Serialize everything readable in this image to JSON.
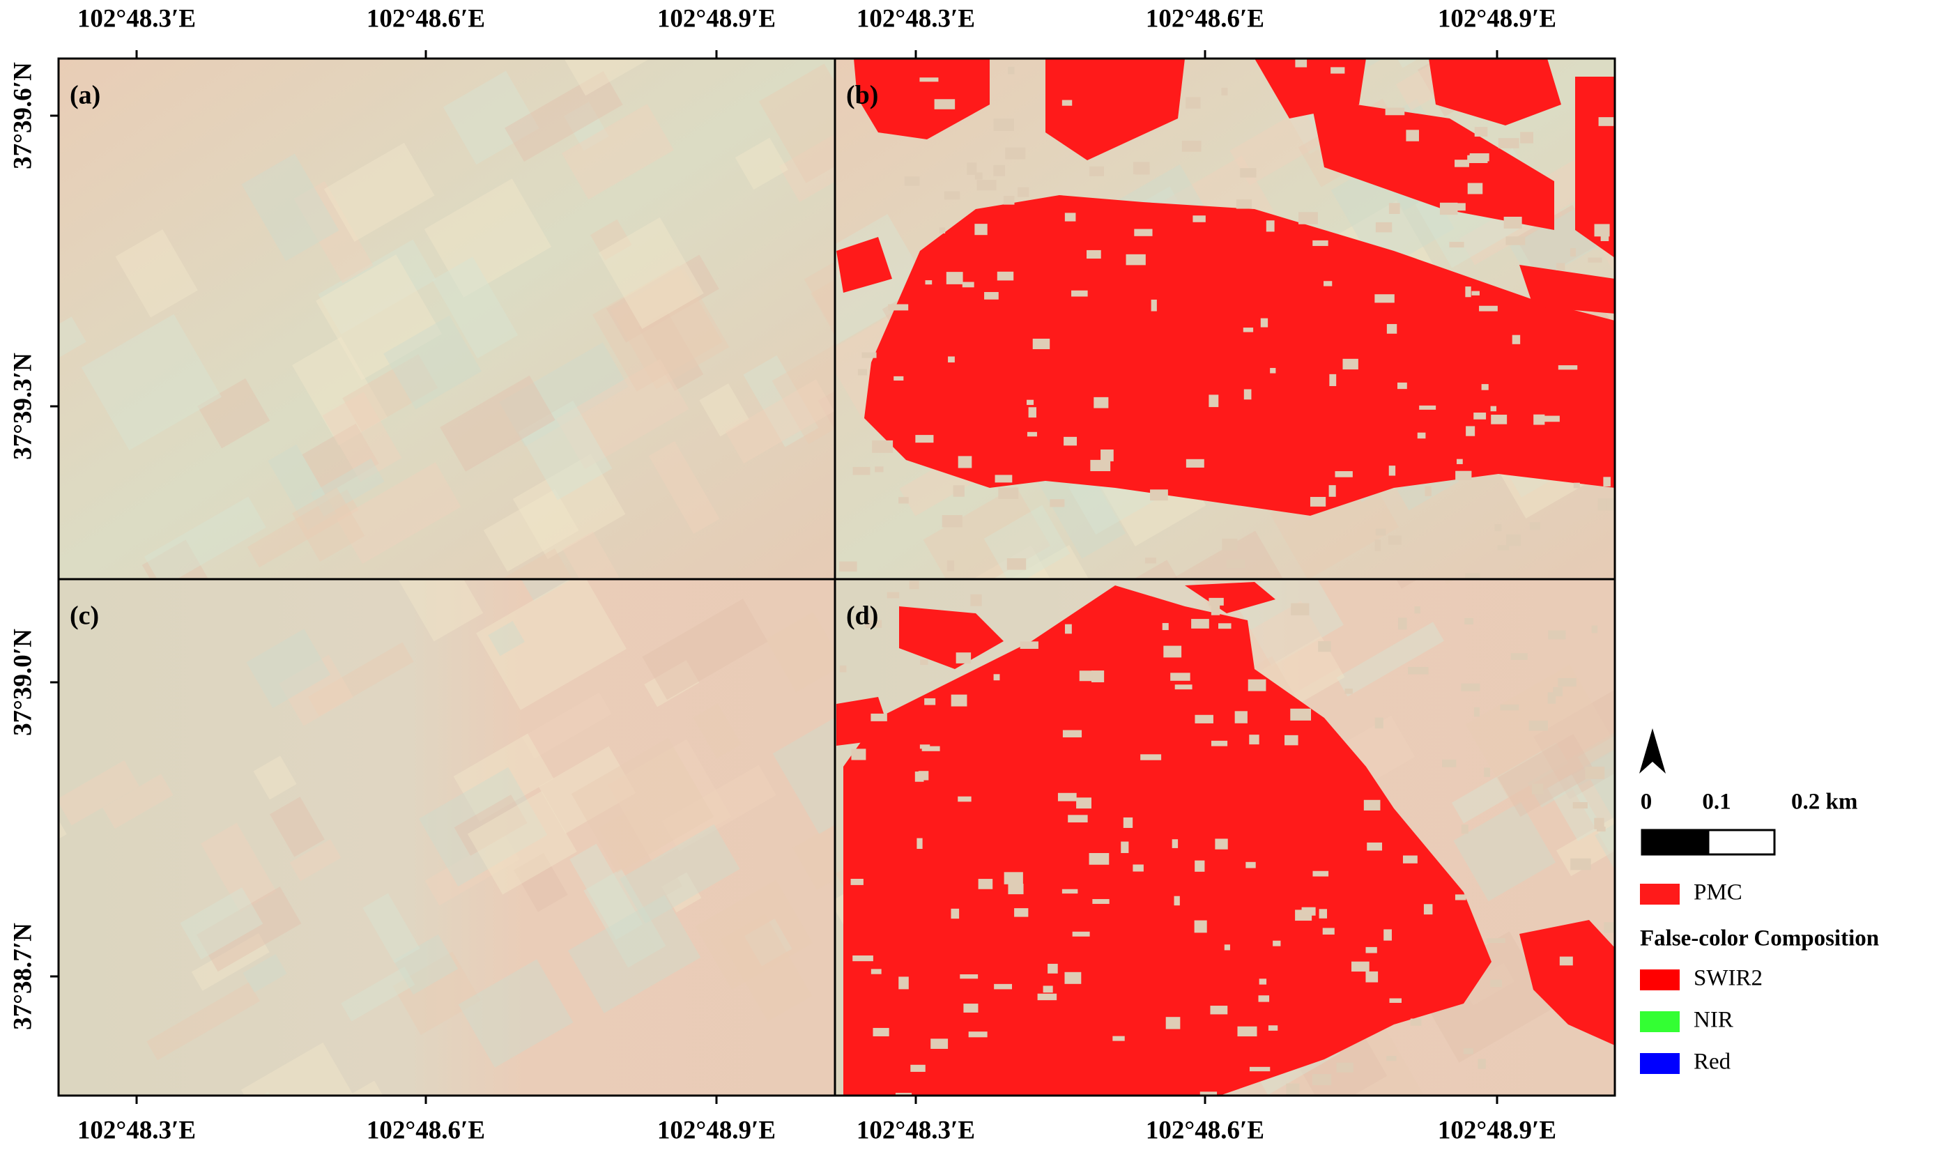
{
  "panels": [
    {
      "label": "(a)"
    },
    {
      "label": "(b)"
    },
    {
      "label": "(c)"
    },
    {
      "label": "(d)"
    }
  ],
  "axes": {
    "top": [
      [
        "102°48.3′E",
        "102°48.6′E",
        "102°48.9′E"
      ],
      [
        "102°48.3′E",
        "102°48.6′E",
        "102°48.9′E"
      ]
    ],
    "bottom": [
      [
        "102°48.3′E",
        "102°48.6′E",
        "102°48.9′E"
      ],
      [
        "102°48.3′E",
        "102°48.6′E",
        "102°48.9′E"
      ]
    ],
    "left": [
      "37°39.6′N",
      "37°39.3′N",
      "37°39.0′N",
      "37°38.7′N"
    ]
  },
  "legend": {
    "scale_bar": [
      "0",
      "0.1",
      "0.2 km"
    ],
    "mapping": [
      {
        "label": "PMC",
        "color": "#ff1a1a"
      }
    ],
    "composition": {
      "title": "False-color Composition",
      "items": [
        {
          "label": "SWIR2",
          "color": "#ff0000"
        },
        {
          "label": "NIR",
          "color": "#33ff33"
        },
        {
          "label": "Red",
          "color": "#0000ff"
        }
      ]
    }
  }
}
